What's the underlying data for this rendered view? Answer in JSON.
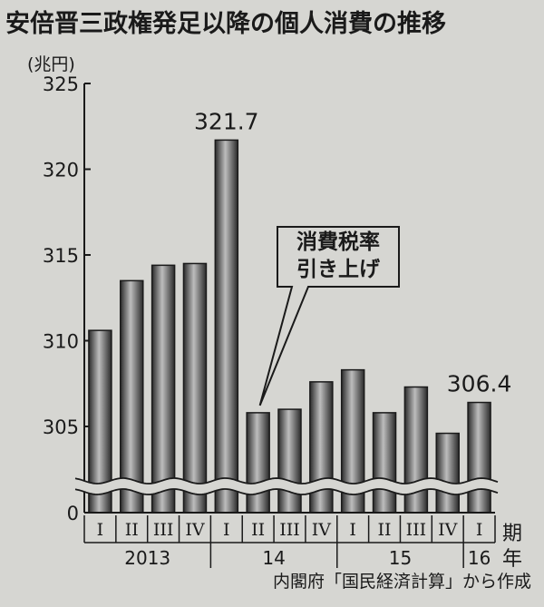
{
  "title": "安倍晋三政権発足以降の個人消費の推移",
  "unit_label": "(兆円)",
  "source": "内閣府「国民経済計算」から作成",
  "quarter_suffix": "期",
  "year_suffix": "年",
  "annotation": {
    "line1": "消費税率",
    "line2": "引き上げ",
    "points_to_index": 5
  },
  "colors": {
    "background": "#d6d6d2",
    "bar_dark": "#2a2a2a",
    "bar_light": "#bdbdbd",
    "axis": "#1a1a1a"
  },
  "chart_data": {
    "type": "bar",
    "title": "安倍晋三政権発足以降の個人消費の推移",
    "ylabel": "(兆円)",
    "ylim": [
      0,
      325
    ],
    "axis_break": true,
    "yticks": [
      0,
      305,
      310,
      315,
      320,
      325
    ],
    "quarters": [
      "I",
      "II",
      "III",
      "IV",
      "I",
      "II",
      "III",
      "IV",
      "I",
      "II",
      "III",
      "IV",
      "I"
    ],
    "years": [
      {
        "label": "2013",
        "start": 0,
        "end": 3
      },
      {
        "label": "14",
        "start": 4,
        "end": 7
      },
      {
        "label": "15",
        "start": 8,
        "end": 11
      },
      {
        "label": "16",
        "start": 12,
        "end": 12
      }
    ],
    "values": [
      310.6,
      313.5,
      314.4,
      314.5,
      321.7,
      305.8,
      306.0,
      307.6,
      308.3,
      305.8,
      307.3,
      304.6,
      306.4
    ],
    "value_labels": {
      "4": "321.7",
      "12": "306.4"
    },
    "grid": false
  }
}
